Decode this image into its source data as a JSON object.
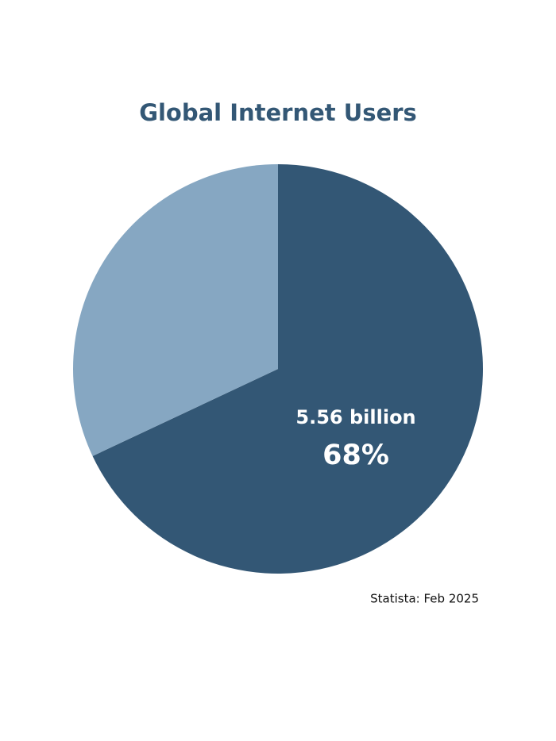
{
  "chart_data": {
    "type": "pie",
    "title": "Global Internet Users",
    "categories": [
      null,
      null
    ],
    "values": [
      68,
      32
    ],
    "value_labels": [
      "68%",
      null
    ],
    "value_sublabels": [
      "5.56 billion",
      null
    ],
    "colors": [
      "#335775",
      "#86a7c2"
    ],
    "source": "Statista: Feb 2025"
  }
}
